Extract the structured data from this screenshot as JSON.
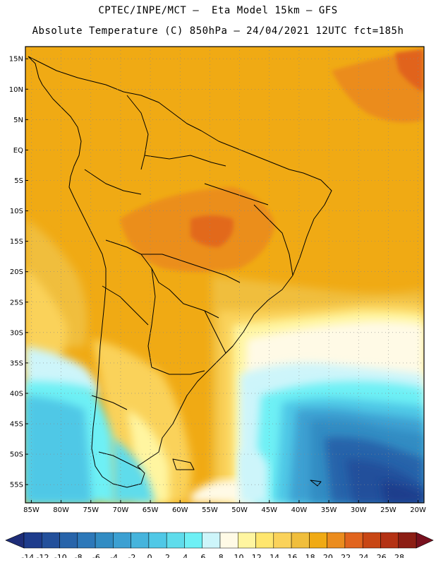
{
  "header": {
    "line1": "CPTEC/INPE/MCT –  Eta Model 15km – GFS",
    "line2": "Absolute Temperature (C) 850hPa – 24/04/2021 12UTC fct=185h"
  },
  "map": {
    "lat_labels": [
      "15N",
      "10N",
      "5N",
      "EQ",
      "5S",
      "10S",
      "15S",
      "20S",
      "25S",
      "30S",
      "35S",
      "40S",
      "45S",
      "50S",
      "55S"
    ],
    "lon_labels": [
      "85W",
      "80W",
      "75W",
      "70W",
      "65W",
      "60W",
      "55W",
      "50W",
      "45W",
      "40W",
      "35W",
      "30W",
      "25W",
      "20W"
    ],
    "lat_values": [
      15,
      10,
      5,
      0,
      -5,
      -10,
      -15,
      -20,
      -25,
      -30,
      -35,
      -40,
      -45,
      -50,
      -55
    ],
    "lon_values": [
      -85,
      -80,
      -75,
      -70,
      -65,
      -60,
      -55,
      -50,
      -45,
      -40,
      -35,
      -30,
      -25,
      -20
    ],
    "extent": {
      "lon_min": -86,
      "lon_max": -19,
      "lat_min": -58,
      "lat_max": 17
    }
  },
  "colorbar": {
    "labels": [
      "-14",
      "-12",
      "-10",
      "-8",
      "-6",
      "-4",
      "-2",
      "0",
      "2",
      "4",
      "6",
      "8",
      "10",
      "12",
      "14",
      "16",
      "18",
      "20",
      "22",
      "24",
      "26",
      "28"
    ],
    "colors": [
      "#1e3c8c",
      "#23509b",
      "#2864aa",
      "#2d78b9",
      "#328cc3",
      "#3ca0d2",
      "#46b4dc",
      "#50c8e6",
      "#5fdceb",
      "#6ef0f5",
      "#cdf5fa",
      "#fffae6",
      "#fff5a0",
      "#ffe66e",
      "#fad25a",
      "#f0be3c",
      "#f0aa14",
      "#eb8c1e",
      "#e1641e",
      "#c84614",
      "#b43214",
      "#8c1e14"
    ],
    "low_color": "#1e2d78",
    "high_color": "#78101e"
  }
}
